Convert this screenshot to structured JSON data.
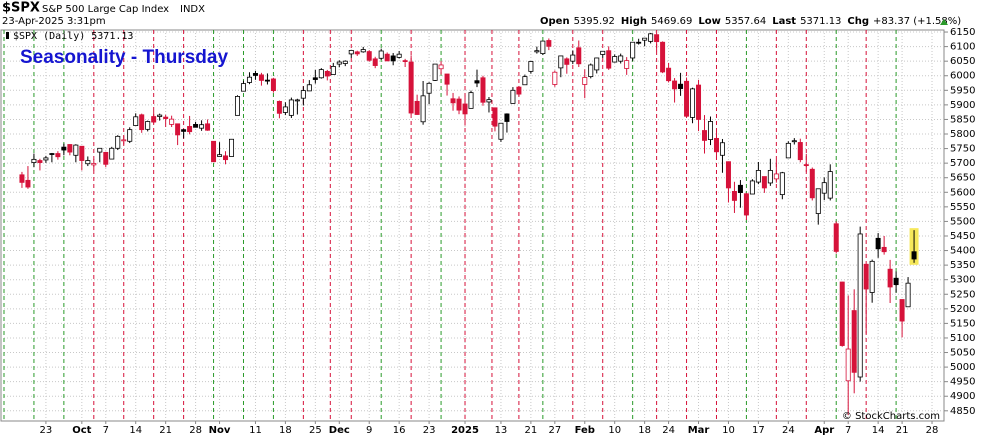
{
  "header": {
    "symbol": "$SPX",
    "name": "S&P 500 Large Cap Index",
    "exchange": "INDX",
    "datetime": "23-Apr-2025 3:31pm",
    "quote": [
      {
        "label": "Open",
        "value": 5395.92
      },
      {
        "label": "High",
        "value": 5469.69
      },
      {
        "label": "Low",
        "value": 5357.64
      },
      {
        "label": "Last",
        "value": 5371.13
      },
      {
        "label": "Chg",
        "value": "+83.37 (+1.58%)"
      }
    ],
    "legend": "$SPX (Daily) 5371.13",
    "watermark": "© StockCharts.com"
  },
  "chart_data": {
    "type": "candlestick",
    "title": "Seasonality - Thursday",
    "open": [
      5660,
      5641,
      5702,
      5709,
      5711,
      5733,
      5733,
      5755,
      5764,
      5727,
      5758,
      5698,
      5694,
      5738,
      5737,
      5714,
      5751,
      5778,
      5775,
      5829,
      5866,
      5816,
      5860,
      5860,
      5858,
      5833,
      5835,
      5815,
      5826,
      5833,
      5820,
      5835,
      5775,
      5723,
      5725,
      5723,
      5864,
      5947,
      5977,
      6008,
      6003,
      5985,
      5989,
      5912,
      5874,
      5864,
      5915,
      5923,
      5948,
      5993,
      5993,
      6015,
      6004,
      6040,
      6042,
      6075,
      6082,
      6082,
      6083,
      6058,
      6060,
      6074,
      6068,
      6063,
      6052,
      6047,
      5912,
      5842,
      5940,
      5984,
      6024,
      6006,
      5921,
      5920,
      5903,
      5888,
      5983,
      5993,
      5910,
      5890,
      5782,
      5869,
      5905,
      5961,
      5969,
      6015,
      6082,
      6076,
      6121,
      5970,
      6027,
      6058,
      6050,
      6096,
      5970,
      5997,
      6020,
      6073,
      6086,
      6047,
      6050,
      6025,
      6061,
      6115,
      6122,
      6118,
      6141,
      6115,
      6026,
      5982,
      5971,
      5981,
      5857,
      5968,
      5812,
      5781,
      5785,
      5727,
      5705,
      5603,
      5624,
      5595,
      5594,
      5635,
      5654,
      5632,
      5646,
      5592,
      5718,
      5775,
      5771,
      5695,
      5679,
      5527,
      5597,
      5580,
      5492,
      5292,
      4953,
      5194,
      4966,
      5353,
      5256,
      5442,
      5411,
      5336,
      5305,
      5232,
      5207,
      5396
    ],
    "high": [
      5670,
      5690,
      5733,
      5715,
      5725,
      5735,
      5741,
      5767,
      5765,
      5765,
      5758,
      5723,
      5714,
      5752,
      5739,
      5756,
      5796,
      5795,
      5823,
      5871,
      5870,
      5846,
      5879,
      5870,
      5866,
      5863,
      5835,
      5817,
      5862,
      5842,
      5847,
      5850,
      5775,
      5772,
      5741,
      5783,
      5933,
      5983,
      6012,
      6017,
      6010,
      6008,
      5993,
      5915,
      5909,
      5925,
      5921,
      5964,
      5985,
      6020,
      6026,
      6020,
      6044,
      6053,
      6053,
      6089,
      6086,
      6099,
      6088,
      6065,
      6093,
      6080,
      6078,
      6085,
      6058,
      6070,
      5935,
      5982,
      5978,
      6040,
      6050,
      6006,
      5941,
      5929,
      5935,
      5949,
      6021,
      6000,
      5927,
      5890,
      5837,
      5871,
      5961,
      5965,
      6004,
      6051,
      6100,
      6119,
      6128,
      6018,
      6069,
      6063,
      6087,
      6121,
      6022,
      6042,
      6062,
      6084,
      6101,
      6073,
      6076,
      6064,
      6116,
      6127,
      6129,
      6147,
      6143,
      6118,
      6044,
      5992,
      6010,
      5994,
      5959,
      5986,
      5865,
      5860,
      5812,
      5783,
      5706,
      5636,
      5642,
      5598,
      5645,
      5704,
      5654,
      5715,
      5711,
      5670,
      5775,
      5786,
      5784,
      5732,
      5685,
      5613,
      5651,
      5696,
      5500,
      5293,
      5246,
      5267,
      5482,
      5353,
      5369,
      5460,
      5450,
      5368,
      5328,
      5232,
      5309,
      5470
    ],
    "low": [
      5615,
      5612,
      5686,
      5675,
      5701,
      5703,
      5712,
      5727,
      5727,
      5703,
      5675,
      5690,
      5675,
      5703,
      5686,
      5714,
      5745,
      5764,
      5769,
      5829,
      5804,
      5809,
      5836,
      5846,
      5824,
      5824,
      5762,
      5785,
      5799,
      5823,
      5811,
      5811,
      5703,
      5723,
      5696,
      5723,
      5864,
      5947,
      5971,
      5986,
      5966,
      5970,
      5942,
      5854,
      5865,
      5855,
      5867,
      5898,
      5948,
      5973,
      5990,
      5984,
      6004,
      6029,
      6033,
      6061,
      6068,
      6079,
      6048,
      6026,
      6055,
      6050,
      6036,
      6059,
      6030,
      5867,
      5866,
      5832,
      5902,
      5982,
      6004,
      5932,
      5880,
      5868,
      5829,
      5888,
      5961,
      5897,
      5874,
      5809,
      5773,
      5805,
      5905,
      5930,
      5969,
      6007,
      6076,
      6071,
      6088,
      5962,
      5995,
      6007,
      6040,
      6030,
      5923,
      5991,
      6008,
      6061,
      6020,
      6045,
      6042,
      6003,
      6051,
      6107,
      6101,
      6111,
      6084,
      6009,
      5977,
      5908,
      5931,
      5858,
      5837,
      5810,
      5733,
      5762,
      5711,
      5667,
      5565,
      5529,
      5547,
      5505,
      5594,
      5628,
      5598,
      5622,
      5633,
      5576,
      5718,
      5764,
      5703,
      5670,
      5572,
      5489,
      5573,
      5572,
      5390,
      5070,
      4835,
      4910,
      4950,
      5115,
      5221,
      5375,
      5386,
      5220,
      5256,
      5102,
      5207,
      5358
    ],
    "close": [
      5634,
      5618,
      5713,
      5702,
      5718,
      5732,
      5722,
      5745,
      5738,
      5762,
      5709,
      5709,
      5699,
      5751,
      5696,
      5751,
      5792,
      5780,
      5815,
      5859,
      5815,
      5843,
      5841,
      5865,
      5853,
      5851,
      5797,
      5809,
      5808,
      5823,
      5832,
      5813,
      5705,
      5729,
      5712,
      5782,
      5929,
      5973,
      5995,
      6001,
      5984,
      5985,
      5949,
      5871,
      5893,
      5917,
      5917,
      5949,
      5969,
      5987,
      6021,
      5999,
      6032,
      6047,
      6050,
      6087,
      6075,
      6090,
      6053,
      6035,
      6085,
      6051,
      6051,
      6074,
      6050,
      5872,
      5867,
      5931,
      5974,
      6040,
      6037,
      5971,
      5907,
      5882,
      5869,
      5942,
      5975,
      5909,
      5918,
      5827,
      5837,
      5843,
      5950,
      5937,
      5997,
      6049,
      6086,
      6119,
      6101,
      6012,
      6068,
      6039,
      6071,
      6041,
      5994,
      6037,
      6061,
      6084,
      6026,
      6066,
      6068,
      6052,
      6115,
      6115,
      6129,
      6144,
      6117,
      6013,
      5983,
      5955,
      5956,
      5861,
      5955,
      5850,
      5778,
      5843,
      5739,
      5770,
      5615,
      5572,
      5599,
      5522,
      5639,
      5675,
      5615,
      5675,
      5663,
      5667,
      5768,
      5777,
      5712,
      5693,
      5581,
      5612,
      5633,
      5671,
      5397,
      5074,
      5062,
      4982,
      5457,
      5268,
      5363,
      5406,
      5396,
      5275,
      5283,
      5158,
      5288,
      5371
    ],
    "up_color": "#000000",
    "down_color": "#d6123a",
    "highlight": {
      "index": 149,
      "color": "#f6e85a"
    },
    "thursday_lines": {
      "x": [
        -3,
        2,
        7,
        12,
        17,
        22,
        27,
        32,
        37,
        42,
        47,
        51.5,
        55,
        60,
        65,
        70,
        74,
        78.5,
        83,
        87,
        92,
        97,
        102,
        106,
        111,
        116,
        121,
        126,
        131,
        136,
        141,
        146
      ],
      "colors": [
        "#2a9a2a",
        "#2a9a2a",
        "#2a9a2a",
        "#d6123a",
        "#d6123a",
        "#d6123a",
        "#d6123a",
        "#2a9a2a",
        "#2a9a2a",
        "#2a9a2a",
        "#d6123a",
        "#d6123a",
        "#d6123a",
        "#2a9a2a",
        "#d6123a",
        "#2a9a2a",
        "#d6123a",
        "#d6123a",
        "#d6123a",
        "#2a9a2a",
        "#d6123a",
        "#d6123a",
        "#2a9a2a",
        "#d6123a",
        "#d6123a",
        "#d6123a",
        "#2a9a2a",
        "#d6123a",
        "#d6123a",
        "#2a9a2a",
        "#d6123a",
        "#2a9a2a"
      ]
    },
    "xlim": [
      -3.5,
      154
    ],
    "xticks": [
      {
        "value": 4,
        "label": "23"
      },
      {
        "value": 10,
        "label": "Oct"
      },
      {
        "value": 14,
        "label": "7"
      },
      {
        "value": 19,
        "label": "14"
      },
      {
        "value": 24,
        "label": "21"
      },
      {
        "value": 29,
        "label": "28"
      },
      {
        "value": 33,
        "label": "Nov"
      },
      {
        "value": 39,
        "label": "11"
      },
      {
        "value": 44,
        "label": "18"
      },
      {
        "value": 49,
        "label": "25"
      },
      {
        "value": 53,
        "label": "Dec"
      },
      {
        "value": 58,
        "label": "9"
      },
      {
        "value": 63,
        "label": "16"
      },
      {
        "value": 68,
        "label": "23"
      },
      {
        "value": 74,
        "label": "2025"
      },
      {
        "value": 80,
        "label": "13"
      },
      {
        "value": 85,
        "label": "21"
      },
      {
        "value": 89,
        "label": "27"
      },
      {
        "value": 94,
        "label": "Feb"
      },
      {
        "value": 99,
        "label": "10"
      },
      {
        "value": 104,
        "label": "18"
      },
      {
        "value": 108,
        "label": "24"
      },
      {
        "value": 113,
        "label": "Mar"
      },
      {
        "value": 118,
        "label": "10"
      },
      {
        "value": 123,
        "label": "17"
      },
      {
        "value": 128,
        "label": "24"
      },
      {
        "value": 134,
        "label": "Apr"
      },
      {
        "value": 138,
        "label": "7"
      },
      {
        "value": 143,
        "label": "14"
      },
      {
        "value": 147,
        "label": "21"
      },
      {
        "value": 152,
        "label": "28"
      }
    ],
    "ylim": [
      4815,
      6157
    ],
    "yticks": [
      4850,
      4900,
      4950,
      5000,
      5050,
      5100,
      5150,
      5200,
      5250,
      5300,
      5350,
      5400,
      5450,
      5500,
      5550,
      5600,
      5650,
      5700,
      5750,
      5800,
      5850,
      5900,
      5950,
      6000,
      6050,
      6100,
      6150
    ],
    "grid": true
  }
}
